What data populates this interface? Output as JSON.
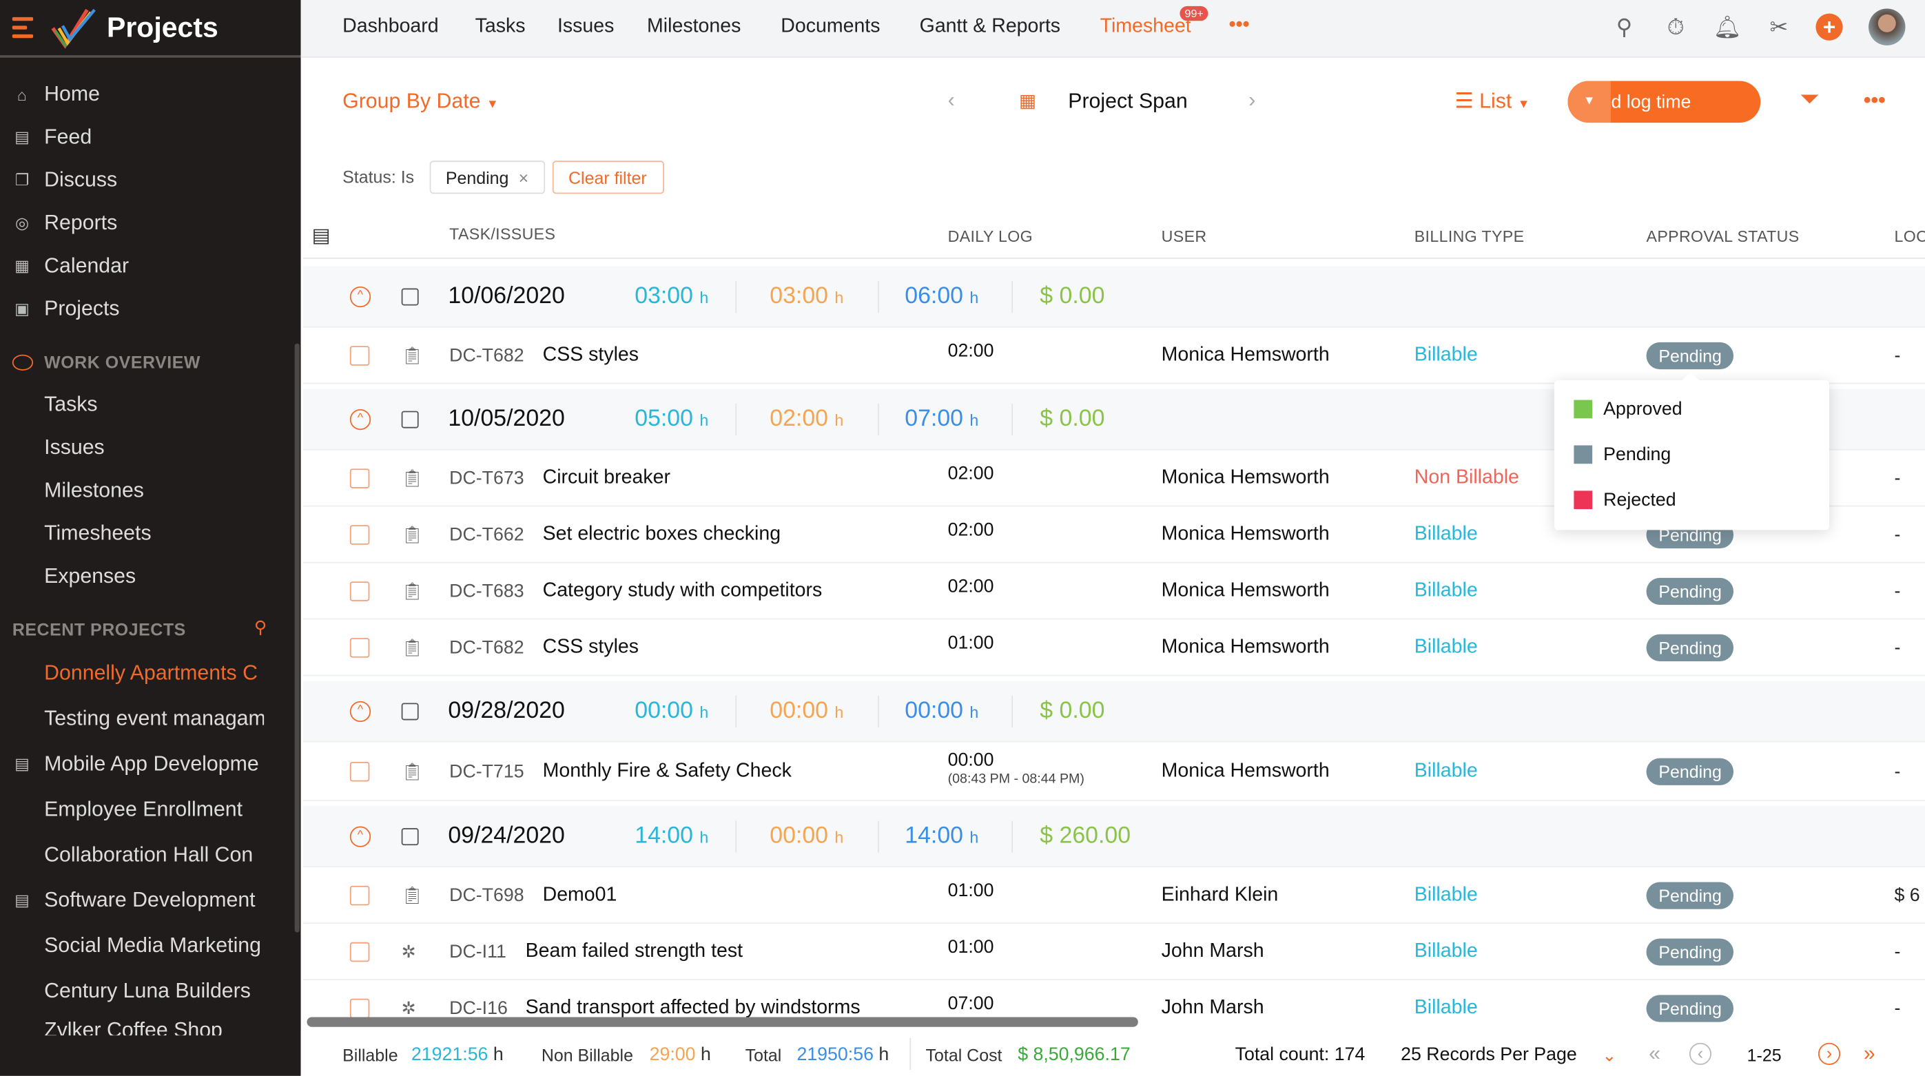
{
  "app": {
    "title": "Projects"
  },
  "sidebar": {
    "main": [
      {
        "label": "Home",
        "icon": "home-icon",
        "glyph": "⌂"
      },
      {
        "label": "Feed",
        "icon": "feed-icon",
        "glyph": "▤"
      },
      {
        "label": "Discuss",
        "icon": "discuss-icon",
        "glyph": "❐"
      },
      {
        "label": "Reports",
        "icon": "reports-icon",
        "glyph": "◎"
      },
      {
        "label": "Calendar",
        "icon": "calendar-icon",
        "glyph": "▦"
      },
      {
        "label": "Projects",
        "icon": "projects-icon",
        "glyph": "▣"
      }
    ],
    "work_overview_label": "WORK OVERVIEW",
    "work_overview": [
      "Tasks",
      "Issues",
      "Milestones",
      "Timesheets",
      "Expenses"
    ],
    "recent_label": "RECENT PROJECTS",
    "recent": [
      {
        "label": "Donnelly Apartments C",
        "active": true
      },
      {
        "label": "Testing event managam"
      },
      {
        "label": "Mobile App Developme",
        "icon": true
      },
      {
        "label": "Employee Enrollment"
      },
      {
        "label": "Collaboration Hall Con"
      },
      {
        "label": "Software Development",
        "icon": true
      },
      {
        "label": "Social Media Marketing"
      },
      {
        "label": "Century Luna Builders"
      },
      {
        "label": "Zylker Coffee Shop"
      }
    ]
  },
  "nav": {
    "items": [
      "Dashboard",
      "Tasks",
      "Issues",
      "Milestones",
      "Documents",
      "Gantt & Reports",
      "Timesheet"
    ],
    "active": "Timesheet",
    "badge": "99+",
    "more": "•••"
  },
  "toolbar": {
    "group_by": "Group By Date",
    "period": "Project Span",
    "view": "List",
    "add_log": "Add log time",
    "more": "•••"
  },
  "filter": {
    "label": "Status: Is",
    "chip": "Pending",
    "clear": "Clear filter"
  },
  "columns": [
    "TASK/ISSUES",
    "DAILY LOG",
    "USER",
    "BILLING TYPE",
    "APPROVAL STATUS",
    "LOC"
  ],
  "groups": [
    {
      "date": "10/06/2020",
      "billable": "03:00",
      "non_billable": "03:00",
      "total": "06:00",
      "cost": "$ 0.00",
      "rows": [
        {
          "type": "task",
          "id": "DC-T682",
          "name": "CSS styles",
          "daily": "02:00",
          "user": "Monica Hemsworth",
          "billing": "Billable",
          "status": "Pending",
          "loc": "-"
        }
      ]
    },
    {
      "date": "10/05/2020",
      "billable": "05:00",
      "non_billable": "02:00",
      "total": "07:00",
      "cost": "$ 0.00",
      "rows": [
        {
          "type": "task",
          "id": "DC-T673",
          "name": "Circuit breaker",
          "daily": "02:00",
          "user": "Monica Hemsworth",
          "billing": "Non Billable",
          "status": "Pending",
          "loc": "-"
        },
        {
          "type": "task",
          "id": "DC-T662",
          "name": "Set electric boxes checking",
          "daily": "02:00",
          "user": "Monica Hemsworth",
          "billing": "Billable",
          "status": "Pending",
          "loc": "-"
        },
        {
          "type": "task",
          "id": "DC-T683",
          "name": "Category study with competitors",
          "daily": "02:00",
          "user": "Monica Hemsworth",
          "billing": "Billable",
          "status": "Pending",
          "loc": "-"
        },
        {
          "type": "task",
          "id": "DC-T682",
          "name": "CSS styles",
          "daily": "01:00",
          "user": "Monica Hemsworth",
          "billing": "Billable",
          "status": "Pending",
          "loc": "-"
        }
      ]
    },
    {
      "date": "09/28/2020",
      "billable": "00:00",
      "non_billable": "00:00",
      "total": "00:00",
      "cost": "$ 0.00",
      "rows": [
        {
          "type": "task",
          "id": "DC-T715",
          "name": "Monthly Fire & Safety Check",
          "daily": "00:00",
          "range": "(08:43 PM - 08:44 PM)",
          "user": "Monica Hemsworth",
          "billing": "Billable",
          "status": "Pending",
          "loc": "-"
        }
      ]
    },
    {
      "date": "09/24/2020",
      "billable": "14:00",
      "non_billable": "00:00",
      "total": "14:00",
      "cost": "$ 260.00",
      "rows": [
        {
          "type": "task",
          "id": "DC-T698",
          "name": "Demo01",
          "daily": "01:00",
          "user": "Einhard Klein",
          "billing": "Billable",
          "status": "Pending",
          "loc": "$ 6"
        },
        {
          "type": "issue",
          "id": "DC-I11",
          "name": "Beam failed strength test",
          "daily": "01:00",
          "user": "John Marsh",
          "billing": "Billable",
          "status": "Pending",
          "loc": "-"
        },
        {
          "type": "issue",
          "id": "DC-I16",
          "name": "Sand transport affected by windstorms",
          "daily": "07:00",
          "user": "John Marsh",
          "billing": "Billable",
          "status": "Pending",
          "loc": "-"
        }
      ]
    }
  ],
  "hour_unit": "h",
  "status_menu": [
    {
      "label": "Approved",
      "color": "#7ac74f"
    },
    {
      "label": "Pending",
      "color": "#78909c"
    },
    {
      "label": "Rejected",
      "color": "#ee3456"
    }
  ],
  "footer": {
    "billable_label": "Billable",
    "billable": "21921:56",
    "non_billable_label": "Non Billable",
    "non_billable": "29:00",
    "total_label": "Total",
    "total": "21950:56",
    "cost_label": "Total Cost",
    "cost": "$ 8,50,966.17",
    "total_count": "Total count: 174",
    "per_page": "25 Records Per Page",
    "range": "1-25"
  },
  "colors": {
    "accent": "#f26a2a",
    "billable": "#29b6d8",
    "non_billable": "#f5a452",
    "total": "#3a8ee6",
    "cost": "#8bc34a",
    "non_billable_text": "#f0645a",
    "pending": "#78909c"
  }
}
